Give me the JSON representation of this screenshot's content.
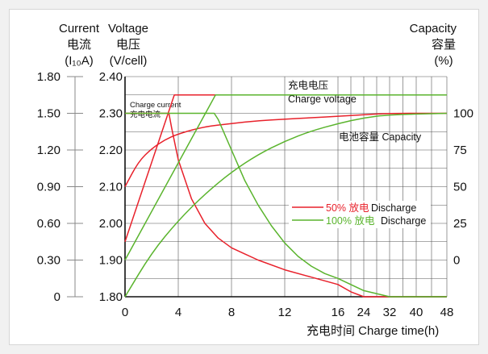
{
  "chart_data": {
    "type": "line",
    "header": {
      "current": [
        "Current",
        "电流",
        "(I₁₀A)"
      ],
      "voltage": [
        "Voltage",
        "电压",
        "(V/cell)"
      ],
      "capacity": [
        "Capacity",
        "容量",
        "(%)"
      ]
    },
    "xlabel": "充电时间 Charge time(h)",
    "x_ticks": [
      "0",
      "4",
      "8",
      "12",
      "16",
      "24",
      "32",
      "40",
      "48"
    ],
    "x_hours": [
      0,
      4,
      8,
      12,
      16,
      24,
      32,
      40,
      48
    ],
    "current_axis": {
      "ticks": [
        "1.80",
        "1.50",
        "1.20",
        "0.90",
        "0.60",
        "0.30",
        "0"
      ],
      "range": [
        0,
        1.8
      ]
    },
    "voltage_axis": {
      "ticks": [
        "2.40",
        "2.30",
        "2.20",
        "2.10",
        "2.00",
        "1.90",
        "1.80"
      ],
      "range": [
        1.8,
        2.4
      ]
    },
    "capacity_axis": {
      "ticks": [
        "100",
        "75",
        "50",
        "25",
        "0"
      ],
      "range": [
        -25,
        125
      ]
    },
    "annotations": {
      "charge_current": [
        "Charge current",
        "充电电流"
      ],
      "charge_voltage": [
        "充电电压",
        "Charge voltage"
      ],
      "battery_capacity": "电池容量 Capacity"
    },
    "legend": [
      {
        "cn": "50% 放电",
        "en": "Discharge",
        "color": "#e8212b"
      },
      {
        "cn": "100% 放电",
        "en": "Discharge",
        "color": "#5ab42d"
      }
    ],
    "series": [
      {
        "name": "50% 放电",
        "metric": "charge_current",
        "axis": "current",
        "color": "#e8212b",
        "x": [
          0,
          3.3,
          3.5,
          4,
          5,
          6,
          7,
          8,
          9,
          10,
          12,
          14,
          16,
          20,
          24,
          32,
          40,
          48
        ],
        "y": [
          1.5,
          1.5,
          1.38,
          1.12,
          0.8,
          0.6,
          0.48,
          0.4,
          0.35,
          0.3,
          0.22,
          0.16,
          0.1,
          0.04,
          0,
          0,
          0,
          0
        ]
      },
      {
        "name": "50% 放电",
        "metric": "charge_voltage",
        "axis": "voltage",
        "color": "#e8212b",
        "x": [
          0,
          3.7,
          48
        ],
        "y": [
          1.95,
          2.35,
          2.35
        ]
      },
      {
        "name": "50% 放电",
        "metric": "capacity",
        "axis": "capacity",
        "color": "#e8212b",
        "x": [
          0,
          1,
          2,
          3,
          4,
          6,
          8,
          10,
          12,
          14,
          16,
          24,
          32,
          48
        ],
        "y": [
          50,
          67,
          76,
          82,
          86,
          91,
          93,
          95,
          96,
          97,
          98,
          99,
          100,
          100
        ]
      },
      {
        "name": "100% 放电",
        "metric": "charge_current",
        "axis": "current",
        "color": "#5ab42d",
        "x": [
          0,
          6.7,
          7,
          8,
          9,
          10,
          11,
          12,
          13,
          14,
          15,
          16,
          24,
          32,
          48
        ],
        "y": [
          1.5,
          1.5,
          1.45,
          1.2,
          0.95,
          0.75,
          0.58,
          0.44,
          0.33,
          0.25,
          0.19,
          0.15,
          0.05,
          0,
          0
        ]
      },
      {
        "name": "100% 放电",
        "metric": "charge_voltage",
        "axis": "voltage",
        "color": "#5ab42d",
        "x": [
          0,
          6.8,
          48
        ],
        "y": [
          1.9,
          2.35,
          2.35
        ]
      },
      {
        "name": "100% 放电",
        "metric": "capacity",
        "axis": "capacity",
        "color": "#5ab42d",
        "x": [
          0,
          2,
          4,
          6,
          8,
          10,
          12,
          14,
          16,
          24,
          32,
          48
        ],
        "y": [
          -25,
          5,
          27,
          45,
          60,
          72,
          81,
          88,
          93,
          97,
          99,
          100
        ]
      }
    ]
  }
}
